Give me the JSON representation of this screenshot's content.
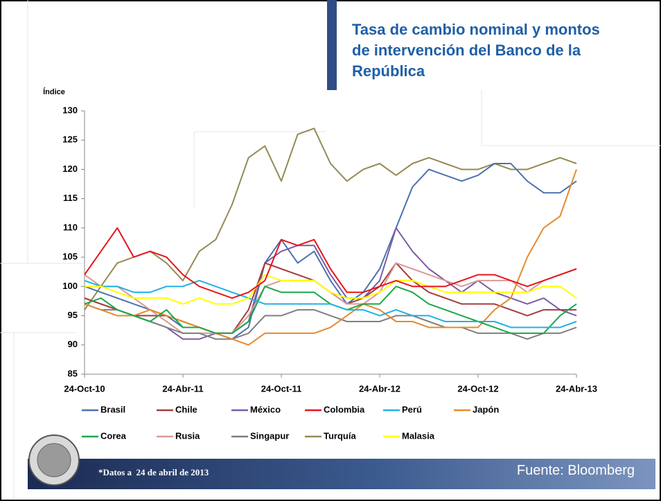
{
  "header": {
    "title": "Tasa de cambio nominal y montos de intervención del Banco de la República"
  },
  "chart_data": {
    "type": "line",
    "y_label": "Índice",
    "categories": [
      "24-Oct-10",
      null,
      null,
      null,
      null,
      null,
      "24-Abr-11",
      null,
      null,
      null,
      null,
      null,
      "24-Oct-11",
      null,
      null,
      null,
      null,
      null,
      "24-Abr-12",
      null,
      null,
      null,
      null,
      null,
      "24-Oct-12",
      null,
      null,
      null,
      null,
      null,
      "24-Abr-13"
    ],
    "ylim": [
      85,
      130
    ],
    "yticks": [
      85,
      90,
      95,
      100,
      105,
      110,
      115,
      120,
      125,
      130
    ],
    "grid": false,
    "series": [
      {
        "name": "Brasil",
        "color": "#4a72b0",
        "values": [
          100,
          99,
          98,
          97,
          96,
          95,
          93,
          93,
          92,
          91,
          93,
          104,
          108,
          104,
          106,
          101,
          97,
          99,
          103,
          110,
          117,
          120,
          119,
          118,
          119,
          121,
          121,
          118,
          116,
          116,
          118
        ]
      },
      {
        "name": "Chile",
        "color": "#a33d3a",
        "values": [
          98,
          97,
          96,
          95,
          95,
          95,
          94,
          93,
          92,
          92,
          96,
          104,
          103,
          102,
          101,
          99,
          97,
          98,
          100,
          104,
          101,
          99,
          98,
          97,
          97,
          97,
          96,
          95,
          96,
          96,
          96
        ]
      },
      {
        "name": "México",
        "color": "#7b5ba6",
        "values": [
          98,
          97,
          96,
          95,
          94,
          93,
          91,
          91,
          92,
          92,
          94,
          104,
          106,
          107,
          107,
          102,
          98,
          98,
          101,
          110,
          106,
          103,
          101,
          99,
          101,
          99,
          98,
          97,
          98,
          96,
          95
        ]
      },
      {
        "name": "Colombia",
        "color": "#e8141c",
        "values": [
          102,
          106,
          110,
          105,
          106,
          105,
          102,
          100,
          99,
          98,
          99,
          101,
          108,
          107,
          108,
          103,
          99,
          99,
          100,
          101,
          100,
          100,
          100,
          101,
          102,
          102,
          101,
          100,
          101,
          102,
          103
        ]
      },
      {
        "name": "Perú",
        "color": "#1fb1e6",
        "values": [
          101,
          100,
          100,
          99,
          99,
          100,
          100,
          101,
          100,
          99,
          98,
          97,
          97,
          97,
          97,
          97,
          96,
          96,
          95,
          96,
          95,
          95,
          94,
          94,
          94,
          94,
          93,
          93,
          93,
          93,
          94
        ]
      },
      {
        "name": "Japón",
        "color": "#e58a2c",
        "values": [
          97,
          96,
          95,
          95,
          96,
          95,
          94,
          93,
          92,
          91,
          90,
          92,
          92,
          92,
          92,
          93,
          95,
          97,
          96,
          94,
          94,
          93,
          93,
          93,
          93,
          96,
          98,
          105,
          110,
          112,
          120
        ]
      },
      {
        "name": "Corea",
        "color": "#1aa84a",
        "values": [
          97,
          98,
          96,
          95,
          94,
          96,
          93,
          93,
          92,
          92,
          94,
          100,
          99,
          99,
          99,
          97,
          96,
          97,
          97,
          100,
          99,
          97,
          96,
          95,
          94,
          93,
          92,
          92,
          92,
          95,
          97
        ]
      },
      {
        "name": "Rusia",
        "color": "#d99a98",
        "values": [
          102,
          100,
          100,
          98,
          96,
          94,
          92,
          92,
          92,
          92,
          95,
          100,
          101,
          101,
          101,
          99,
          97,
          97,
          99,
          104,
          103,
          102,
          101,
          100,
          101,
          101,
          101,
          99,
          101,
          102,
          103
        ]
      },
      {
        "name": "Singapur",
        "color": "#7f7f7f",
        "values": [
          97,
          96,
          96,
          95,
          94,
          93,
          92,
          92,
          91,
          91,
          92,
          95,
          95,
          96,
          96,
          95,
          94,
          94,
          94,
          95,
          95,
          94,
          93,
          93,
          92,
          92,
          92,
          91,
          92,
          92,
          93
        ]
      },
      {
        "name": "Turquía",
        "color": "#948a54",
        "values": [
          96,
          100,
          104,
          105,
          106,
          104,
          101,
          106,
          108,
          114,
          122,
          124,
          118,
          126,
          127,
          121,
          118,
          120,
          121,
          119,
          121,
          122,
          121,
          120,
          120,
          121,
          120,
          120,
          121,
          122,
          121
        ]
      },
      {
        "name": "Malasia",
        "color": "#ffff00",
        "values": [
          100,
          100,
          99,
          98,
          98,
          98,
          97,
          98,
          97,
          97,
          98,
          102,
          101,
          101,
          101,
          99,
          98,
          98,
          99,
          101,
          101,
          100,
          99,
          99,
          99,
          99,
          99,
          99,
          100,
          100,
          98
        ]
      }
    ]
  },
  "footer": {
    "note": "*Datos a  24 de abril de 2013",
    "source": "Fuente: Bloomberg"
  }
}
